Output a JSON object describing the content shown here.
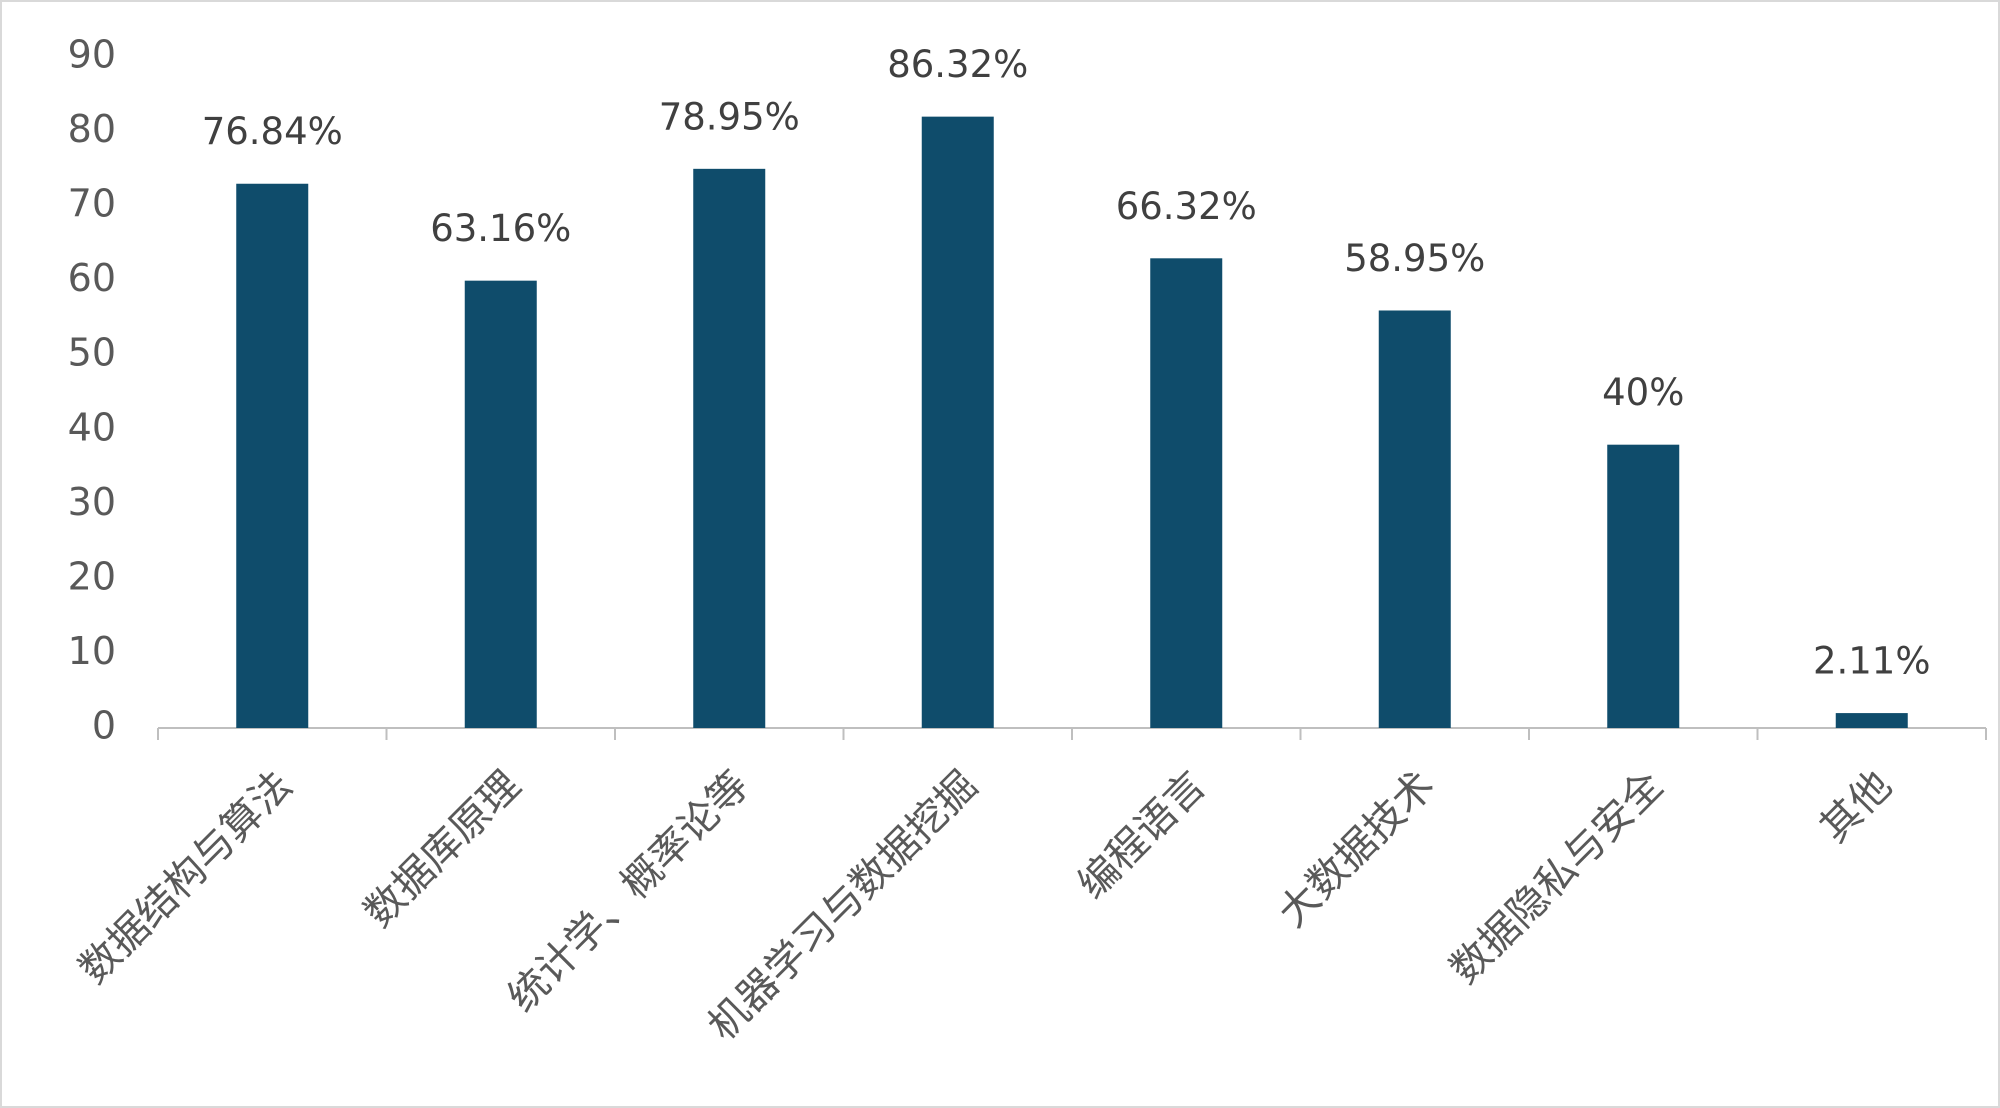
{
  "chart_data": {
    "type": "bar",
    "categories": [
      "数据结构与算法",
      "数据库原理",
      "统计学、概率论等",
      "机器学习与数据挖掘",
      "编程语言",
      "大数据技术",
      "数据隐私与安全",
      "其他"
    ],
    "values": [
      73,
      60,
      75,
      82,
      63,
      56,
      38,
      2
    ],
    "data_labels": [
      "76.84%",
      "63.16%",
      "78.95%",
      "86.32%",
      "66.32%",
      "58.95%",
      "40%",
      "2.11%"
    ],
    "color": "#0f4c6b",
    "ylim": [
      0,
      90
    ],
    "yticks": [
      0,
      10,
      20,
      30,
      40,
      50,
      60,
      70,
      80,
      90
    ],
    "grid": false
  }
}
